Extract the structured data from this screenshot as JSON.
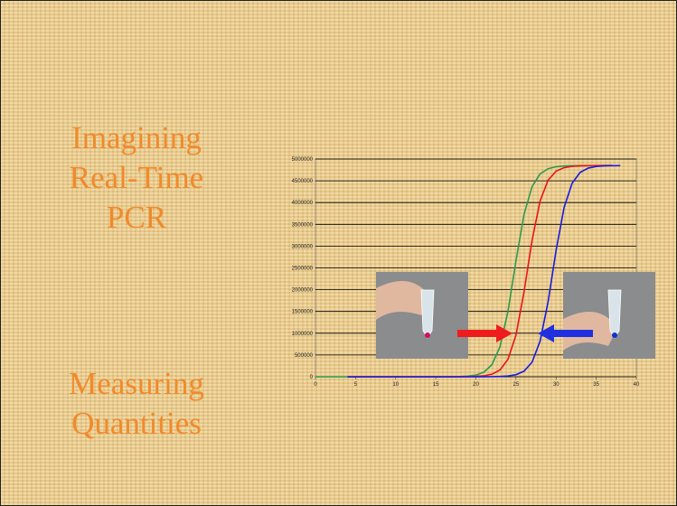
{
  "slide": {
    "title_lines": [
      "Imagining",
      "Real-Time",
      "PCR"
    ],
    "subtitle_lines": [
      "Measuring",
      "Quantities"
    ]
  },
  "chart_data": {
    "type": "line",
    "x": [
      0,
      4,
      8,
      12,
      16,
      18,
      19,
      20,
      21,
      22,
      23,
      24,
      25,
      26,
      27,
      28,
      29,
      30,
      31,
      32,
      33,
      34,
      35,
      36,
      37,
      38
    ],
    "series": [
      {
        "name": "green",
        "color": "#2e9a4e",
        "values": [
          0,
          0,
          0,
          0,
          700,
          5400,
          14700,
          39600,
          106000,
          278000,
          688000,
          1502000,
          2666000,
          3728000,
          4366000,
          4660000,
          4778000,
          4823000,
          4840000,
          4846000,
          4848000,
          4849000,
          4850000,
          4850000,
          4850000,
          null
        ]
      },
      {
        "name": "red",
        "color": "#e8141c",
        "values": [
          null,
          0,
          0,
          0,
          200,
          1090,
          2960,
          8040,
          21800,
          58800,
          156000,
          403000,
          958000,
          1948000,
          3131000,
          4035000,
          4515000,
          4721000,
          4802000,
          4832000,
          4843000,
          4847000,
          4849000,
          4850000,
          4850000,
          null
        ]
      },
      {
        "name": "blue",
        "color": "#1a1ae0",
        "values": [
          null,
          0,
          0,
          0,
          0,
          30,
          120,
          330,
          890,
          2430,
          6590,
          17900,
          48300,
          129000,
          335000,
          815000,
          1719000,
          2904000,
          3890000,
          4447000,
          4693000,
          4791000,
          4829000,
          4842000,
          4847000,
          4849000
        ]
      }
    ],
    "xlim": [
      0,
      40
    ],
    "xticks": [
      0,
      5,
      10,
      15,
      20,
      25,
      30,
      35,
      40
    ],
    "ylim": [
      0,
      5000000
    ],
    "yticks": [
      0,
      500000,
      1000000,
      1500000,
      2000000,
      2500000,
      3000000,
      3500000,
      4000000,
      4500000,
      5000000
    ],
    "grid": true
  }
}
